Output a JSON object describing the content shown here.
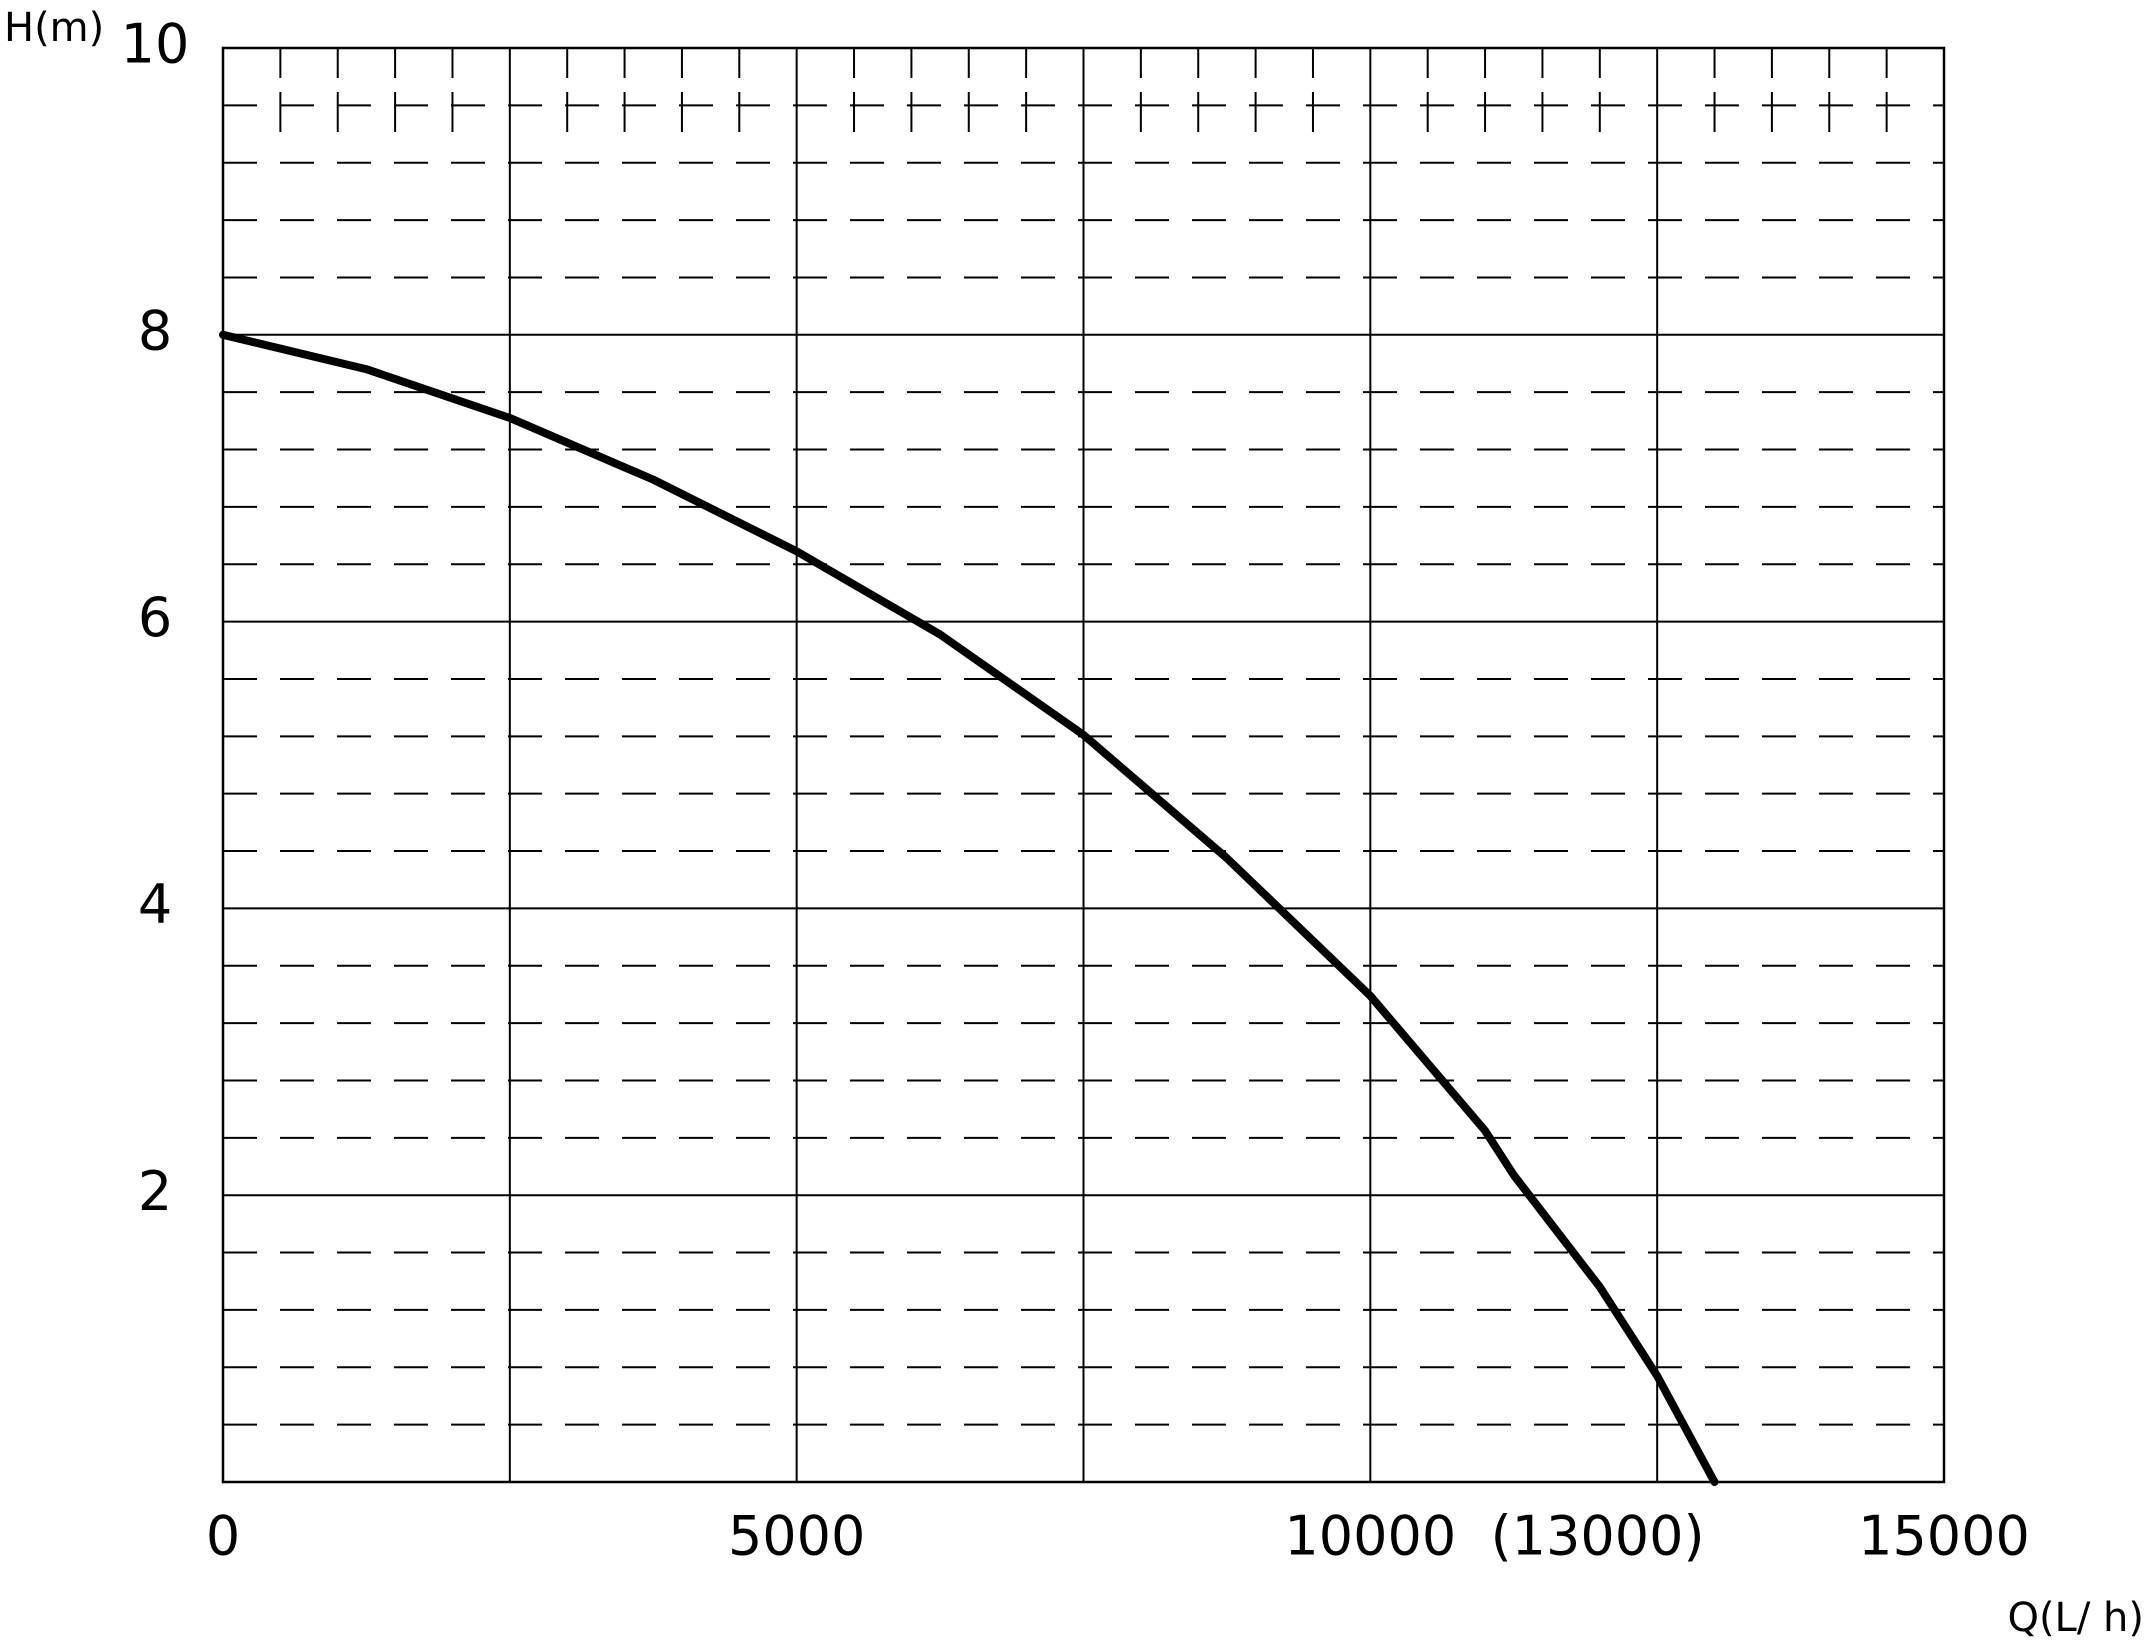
{
  "chart_data": {
    "type": "line",
    "y_label": "H(m)",
    "x_label": "Q(L/ h)",
    "x": [
      0,
      1250,
      2500,
      3750,
      5000,
      6250,
      7500,
      8750,
      10000,
      11000,
      11250,
      12000,
      12500,
      13000
    ],
    "series": [
      {
        "color": "#000000",
        "values": [
          8,
          7.76,
          7.42,
          6.99,
          6.49,
          5.91,
          5.21,
          4.35,
          3.39,
          2.45,
          2.14,
          1.36,
          0.74,
          0
        ]
      }
    ],
    "xlim": [
      0,
      15000
    ],
    "ylim": [
      0,
      10
    ],
    "xticks": [
      0,
      5000,
      10000,
      {
        "value": 13000,
        "label": "(13000)"
      },
      15000
    ],
    "yticks": [
      2,
      4,
      6,
      8,
      10
    ],
    "x_grid": [
      2500,
      5000,
      7500,
      10000,
      12500
    ],
    "y_minor_grid": [
      0.4,
      0.8,
      1.2,
      1.6,
      2.4,
      2.8,
      3.2,
      3.6,
      4.4,
      4.8,
      5.2,
      5.6,
      6.4,
      6.8,
      7.2,
      7.6,
      8.4,
      8.8,
      9.2,
      9.6
    ],
    "grid": true
  }
}
